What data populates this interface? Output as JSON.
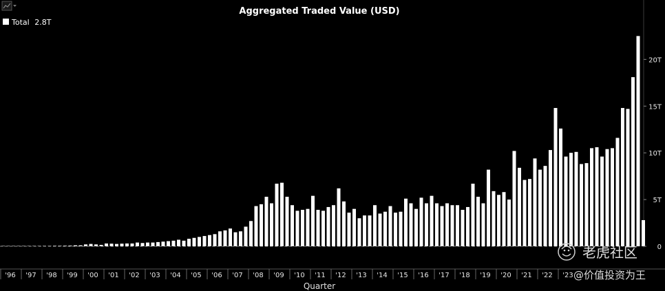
{
  "toolbar": {
    "chart_icon": "line-chart-icon",
    "dropdown_icon": "caret-down-icon"
  },
  "watermark": {
    "logo_icon": "tiger-logo-icon",
    "line1": "老虎社区",
    "line2": "@价值投资为王"
  },
  "chart_data": {
    "type": "bar",
    "title": "Aggregated Traded Value (USD)",
    "xlabel": "Quarter",
    "ylabel": "",
    "ylim": [
      0,
      24
    ],
    "y_unit": "T",
    "grid": false,
    "legend_position": "top-left",
    "legend": {
      "label": "Total",
      "value": "2.8T"
    },
    "bar_color": "#ffffff",
    "y_ticks": [
      {
        "value": 0,
        "label": "0"
      },
      {
        "value": 5,
        "label": "5T"
      },
      {
        "value": 10,
        "label": "10T"
      },
      {
        "value": 15,
        "label": "15T"
      },
      {
        "value": 20,
        "label": "20T"
      }
    ],
    "year_labels": [
      "'96",
      "'97",
      "'98",
      "'99",
      "'00",
      "'01",
      "'02",
      "'03",
      "'04",
      "'05",
      "'06",
      "'07",
      "'08",
      "'09",
      "'10",
      "'11",
      "'12",
      "'13",
      "'14",
      "'15",
      "'16",
      "'17",
      "'18",
      "'19",
      "'20",
      "'21",
      "'22",
      "'23"
    ],
    "series": [
      {
        "name": "Total",
        "values": [
          0.02,
          0.02,
          0.02,
          0.02,
          0.03,
          0.03,
          0.03,
          0.03,
          0.04,
          0.04,
          0.05,
          0.05,
          0.06,
          0.07,
          0.1,
          0.1,
          0.2,
          0.25,
          0.2,
          0.15,
          0.3,
          0.28,
          0.25,
          0.28,
          0.3,
          0.3,
          0.4,
          0.35,
          0.4,
          0.4,
          0.45,
          0.5,
          0.55,
          0.6,
          0.7,
          0.6,
          0.8,
          0.9,
          1.0,
          1.1,
          1.2,
          1.3,
          1.6,
          1.7,
          1.9,
          1.5,
          1.6,
          2.1,
          2.7,
          4.3,
          4.5,
          5.3,
          4.6,
          6.7,
          6.8,
          5.3,
          4.4,
          3.8,
          3.9,
          4.0,
          5.4,
          3.9,
          3.8,
          4.2,
          4.4,
          6.2,
          4.8,
          3.6,
          4.0,
          3.0,
          3.3,
          3.3,
          4.4,
          3.5,
          3.7,
          4.3,
          3.6,
          3.7,
          5.1,
          4.6,
          4.0,
          5.2,
          4.6,
          5.4,
          4.6,
          4.3,
          4.6,
          4.4,
          4.4,
          3.9,
          4.2,
          6.7,
          5.3,
          4.6,
          8.2,
          5.9,
          5.5,
          5.8,
          5.0,
          10.2,
          8.4,
          7.1,
          7.2,
          9.4,
          8.2,
          8.6,
          10.3,
          14.8,
          12.6,
          9.6,
          10.0,
          10.1,
          8.8,
          8.9,
          10.5,
          10.6,
          9.6,
          10.4,
          10.5,
          11.6,
          14.8,
          14.7,
          18.1,
          22.5,
          2.8
        ]
      }
    ]
  }
}
